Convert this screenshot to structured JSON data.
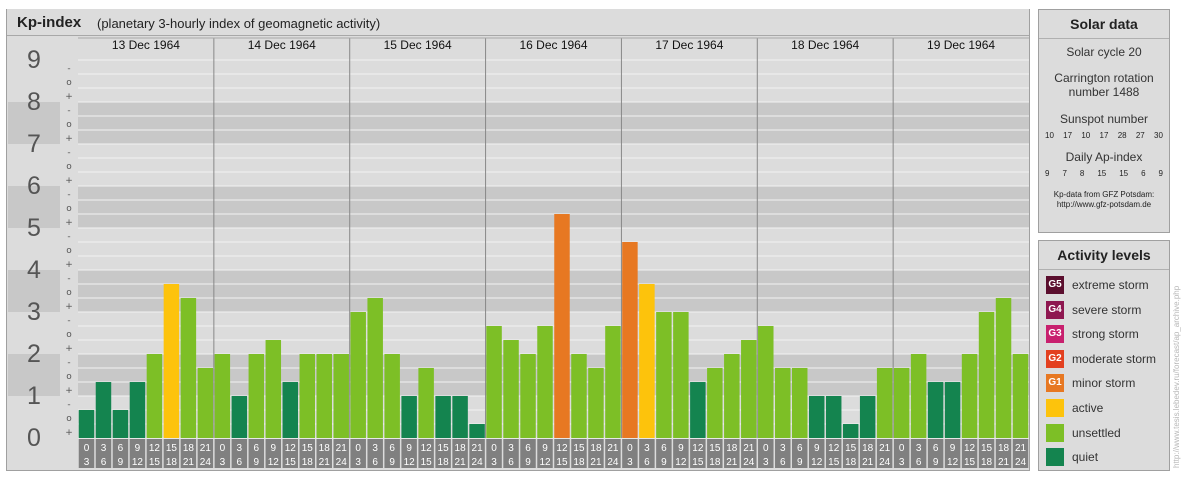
{
  "header": {
    "title": "Kp-index",
    "subtitle": "(planetary 3-hourly index of geomagnetic activity)"
  },
  "y_axis_labels": [
    "0",
    "1",
    "2",
    "3",
    "4",
    "5",
    "6",
    "7",
    "8",
    "9"
  ],
  "sub_tick_labels": [
    "+",
    "o",
    "-"
  ],
  "x_tick_pairs": [
    [
      "0",
      "3"
    ],
    [
      "3",
      "6"
    ],
    [
      "6",
      "9"
    ],
    [
      "9",
      "12"
    ],
    [
      "12",
      "15"
    ],
    [
      "15",
      "18"
    ],
    [
      "18",
      "21"
    ],
    [
      "21",
      "24"
    ]
  ],
  "chart_data": {
    "type": "bar",
    "title": "Kp-index",
    "days": [
      "13 Dec 1964",
      "14 Dec 1964",
      "15 Dec 1964",
      "16 Dec 1964",
      "17 Dec 1964",
      "18 Dec 1964",
      "19 Dec 1964"
    ],
    "interval_hours": [
      [
        0,
        3
      ],
      [
        3,
        6
      ],
      [
        6,
        9
      ],
      [
        9,
        12
      ],
      [
        12,
        15
      ],
      [
        15,
        18
      ],
      [
        18,
        21
      ],
      [
        21,
        24
      ]
    ],
    "values": [
      [
        0.667,
        1.333,
        0.667,
        1.333,
        2.0,
        3.667,
        3.333,
        1.667
      ],
      [
        2.0,
        1.0,
        2.0,
        2.333,
        1.333,
        2.0,
        2.0,
        2.0
      ],
      [
        3.0,
        3.333,
        2.0,
        1.0,
        1.667,
        1.0,
        1.0,
        0.333
      ],
      [
        2.667,
        2.333,
        2.0,
        2.667,
        5.333,
        2.0,
        1.667,
        2.667
      ],
      [
        4.667,
        3.667,
        3.0,
        3.0,
        1.333,
        1.667,
        2.0,
        2.333
      ],
      [
        2.667,
        1.667,
        1.667,
        1.0,
        1.0,
        0.333,
        1.0,
        1.667
      ],
      [
        1.667,
        2.0,
        1.333,
        1.333,
        2.0,
        3.0,
        3.333,
        2.0
      ]
    ],
    "ylim": [
      0,
      9
    ],
    "color_rules": [
      {
        "max": 1.5,
        "level": "quiet"
      },
      {
        "max": 3.5,
        "level": "unsettled"
      },
      {
        "max": 4.5,
        "level": "active"
      },
      {
        "max": 5.5,
        "level": "minor storm"
      },
      {
        "max": 6.5,
        "level": "moderate storm"
      },
      {
        "max": 7.5,
        "level": "strong storm"
      },
      {
        "max": 8.5,
        "level": "severe storm"
      },
      {
        "max": 9.5,
        "level": "extreme storm"
      }
    ]
  },
  "solar_data": {
    "title": "Solar data",
    "solar_cycle": "Solar cycle 20",
    "carrington_line1": "Carrington rotation",
    "carrington_line2": "number 1488",
    "sunspot_title": "Sunspot number",
    "sunspot_values": [
      "10",
      "17",
      "10",
      "17",
      "28",
      "27",
      "30"
    ],
    "ap_title": "Daily Ap-index",
    "ap_values": [
      "9",
      "7",
      "8",
      "15",
      "15",
      "6",
      "9"
    ],
    "credit_line1": "Kp-data from GFZ Potsdam:",
    "credit_line2": "http://www.gfz-potsdam.de"
  },
  "activity_levels": {
    "title": "Activity levels",
    "items": [
      {
        "badge": "G5",
        "label": "extreme storm",
        "color": "#5b0f2e"
      },
      {
        "badge": "G4",
        "label": "severe storm",
        "color": "#8e1750"
      },
      {
        "badge": "G3",
        "label": "strong storm",
        "color": "#c8206e"
      },
      {
        "badge": "G2",
        "label": "moderate storm",
        "color": "#e3401f"
      },
      {
        "badge": "G1",
        "label": "minor storm",
        "color": "#e77822"
      },
      {
        "badge": "",
        "label": "active",
        "color": "#fdc30c"
      },
      {
        "badge": "",
        "label": "unsettled",
        "color": "#7dbf26"
      },
      {
        "badge": "",
        "label": "quiet",
        "color": "#14844f"
      }
    ]
  },
  "watermark": "http://www.tesis.lebedev.ru/forecast/ap_archive.php"
}
